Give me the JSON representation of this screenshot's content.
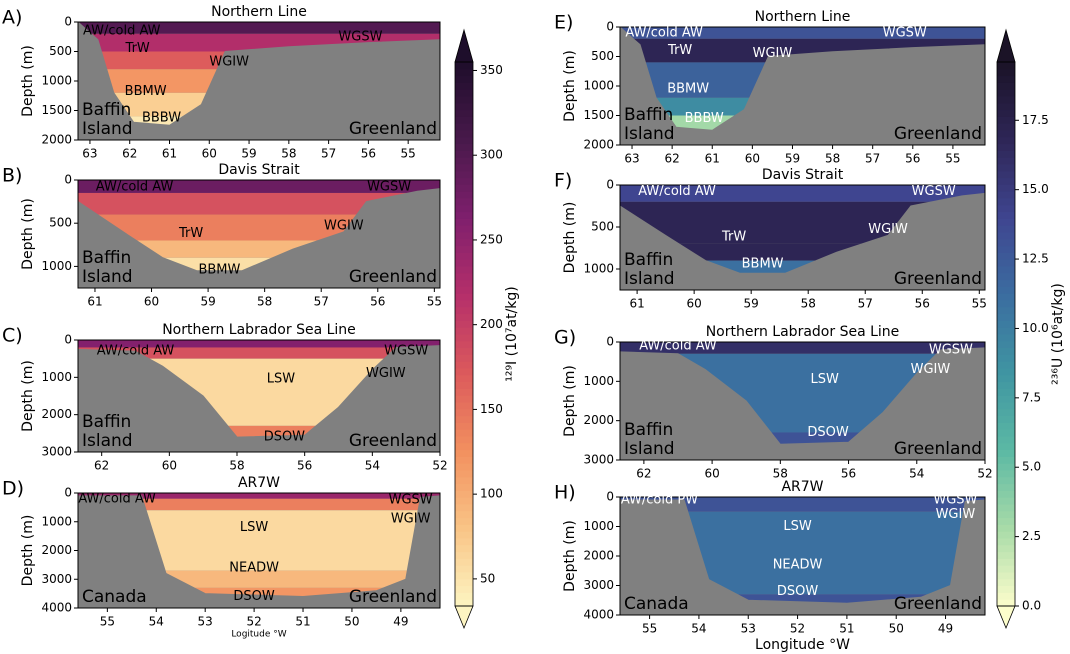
{
  "chart_data": [
    {
      "type": "section",
      "label": "A)",
      "title": "Northern Line",
      "colorbar": 0,
      "label_color": "#000000",
      "ylabel": "Depth (m)",
      "xlim": [
        63.3,
        54.2
      ],
      "xticks": [
        63,
        62,
        61,
        60,
        59,
        58,
        57,
        56,
        55
      ],
      "ylim": [
        0,
        2000
      ],
      "yticks": [
        0,
        500,
        1000,
        1500,
        2000
      ],
      "bathymetry": {
        "x": [
          63.3,
          62.8,
          62.4,
          61.9,
          61,
          60.2,
          59.6,
          58,
          56,
          54.2
        ],
        "depth": [
          0,
          300,
          1200,
          1700,
          1750,
          1400,
          500,
          420,
          350,
          300
        ]
      },
      "profile": {
        "depth": [
          0,
          200,
          500,
          800,
          1200,
          1600
        ],
        "values": [
          300,
          220,
          170,
          120,
          70,
          45
        ]
      },
      "masses": [
        {
          "name": "AW/cold AW",
          "x": 62.2,
          "depth": 150
        },
        {
          "name": "TrW",
          "x": 61.8,
          "depth": 450
        },
        {
          "name": "WGSW",
          "x": 56.2,
          "depth": 250
        },
        {
          "name": "WGIW",
          "x": 59.5,
          "depth": 680
        },
        {
          "name": "BBMW",
          "x": 61.6,
          "depth": 1180
        },
        {
          "name": "BBBW",
          "x": 61.2,
          "depth": 1630
        }
      ],
      "land_left": [
        "Baffin",
        "Island"
      ],
      "land_right": [
        "Greenland"
      ]
    },
    {
      "type": "section",
      "label": "B)",
      "title": "Davis Strait",
      "colorbar": 0,
      "label_color": "#000000",
      "ylabel": "Depth (m)",
      "xlim": [
        61.3,
        54.9
      ],
      "xticks": [
        61,
        60,
        59,
        58,
        57,
        56,
        55
      ],
      "ylim": [
        0,
        1250
      ],
      "yticks": [
        0,
        500,
        1000
      ],
      "bathymetry": {
        "x": [
          61.3,
          60.5,
          59.8,
          59.2,
          58.4,
          57.5,
          56.6,
          56.2,
          55.3,
          54.9
        ],
        "depth": [
          250,
          600,
          900,
          1050,
          1050,
          800,
          600,
          250,
          130,
          100
        ]
      },
      "profile": {
        "depth": [
          0,
          150,
          400,
          700,
          900
        ],
        "values": [
          280,
          180,
          140,
          90,
          55
        ]
      },
      "masses": [
        {
          "name": "AW/cold AW",
          "x": 60.3,
          "depth": 80
        },
        {
          "name": "WGSW",
          "x": 55.8,
          "depth": 80
        },
        {
          "name": "TrW",
          "x": 59.3,
          "depth": 620
        },
        {
          "name": "WGIW",
          "x": 56.6,
          "depth": 530
        },
        {
          "name": "BBMW",
          "x": 58.8,
          "depth": 1040
        }
      ],
      "land_left": [
        "Baffin",
        "Island"
      ],
      "land_right": [
        "Greenland"
      ]
    },
    {
      "type": "section",
      "label": "C)",
      "title": "Northern Labrador Sea Line",
      "colorbar": 0,
      "label_color": "#000000",
      "ylabel": "Depth (m)",
      "xlim": [
        62.7,
        52
      ],
      "xticks": [
        62,
        60,
        58,
        56,
        54,
        52
      ],
      "ylim": [
        0,
        3000
      ],
      "yticks": [
        0,
        1000,
        2000,
        3000
      ],
      "bathymetry": {
        "x": [
          62.7,
          61,
          60.2,
          59,
          58,
          56,
          55,
          54,
          53.3,
          52
        ],
        "depth": [
          250,
          300,
          700,
          1500,
          2600,
          2550,
          1800,
          800,
          200,
          150
        ]
      },
      "profile": {
        "depth": [
          0,
          200,
          500,
          2300
        ],
        "values": [
          260,
          180,
          60,
          140
        ]
      },
      "masses": [
        {
          "name": "AW/cold AW",
          "x": 61,
          "depth": 300
        },
        {
          "name": "WGSW",
          "x": 53,
          "depth": 300
        },
        {
          "name": "WGIW",
          "x": 53.6,
          "depth": 900
        },
        {
          "name": "LSW",
          "x": 56.7,
          "depth": 1050
        },
        {
          "name": "DSOW",
          "x": 56.6,
          "depth": 2600
        }
      ],
      "land_left": [
        "Baffin",
        "Island"
      ],
      "land_right": [
        "Greenland"
      ]
    },
    {
      "type": "section",
      "label": "D)",
      "title": "AR7W",
      "colorbar": 0,
      "label_color": "#000000",
      "ylabel": "Depth (m)",
      "xlabel": "Logitude °W",
      "xlim": [
        55.6,
        48.2
      ],
      "xticks": [
        55,
        54,
        53,
        52,
        51,
        50,
        49
      ],
      "ylim": [
        0,
        4000
      ],
      "yticks": [
        0,
        1000,
        2000,
        3000,
        4000
      ],
      "bathymetry": {
        "x": [
          55.6,
          54.3,
          53.8,
          53,
          51,
          49.5,
          48.9,
          48.6,
          48.2
        ],
        "depth": [
          100,
          100,
          2800,
          3500,
          3600,
          3400,
          3000,
          150,
          100
        ]
      },
      "profile": {
        "depth": [
          0,
          200,
          600,
          2700,
          3300
        ],
        "values": [
          240,
          140,
          60,
          90,
          120
        ]
      },
      "masses": [
        {
          "name": "AW/cold AW",
          "x": 54.8,
          "depth": 200
        },
        {
          "name": "WGSW",
          "x": 48.8,
          "depth": 250
        },
        {
          "name": "WGIW",
          "x": 48.8,
          "depth": 900
        },
        {
          "name": "LSW",
          "x": 52,
          "depth": 1200
        },
        {
          "name": "NEADW",
          "x": 52,
          "depth": 2600
        },
        {
          "name": "DSOW",
          "x": 52,
          "depth": 3600
        }
      ],
      "land_left": [
        "Canada"
      ],
      "land_right": [
        "Greenland"
      ]
    },
    {
      "type": "section",
      "label": "E)",
      "title": "Northern Line",
      "colorbar": 1,
      "label_color": "#ffffff",
      "ylabel": "Depth (m)",
      "xlim": [
        63.3,
        54.2
      ],
      "xticks": [
        63,
        62,
        61,
        60,
        59,
        58,
        57,
        56,
        55
      ],
      "ylim": [
        0,
        2000
      ],
      "yticks": [
        0,
        500,
        1000,
        1500,
        2000
      ],
      "bathymetry": {
        "x": [
          63.3,
          62.8,
          62.4,
          61.9,
          61,
          60.2,
          59.6,
          58,
          56,
          54.2
        ],
        "depth": [
          0,
          300,
          1200,
          1700,
          1750,
          1400,
          500,
          420,
          350,
          300
        ]
      },
      "profile": {
        "depth": [
          0,
          200,
          600,
          1200,
          1500
        ],
        "values": [
          13,
          17,
          12,
          9,
          3
        ]
      },
      "masses": [
        {
          "name": "AW/cold AW",
          "x": 62.2,
          "depth": 100
        },
        {
          "name": "TrW",
          "x": 61.8,
          "depth": 400
        },
        {
          "name": "WGSW",
          "x": 56.2,
          "depth": 100
        },
        {
          "name": "WGIW",
          "x": 59.5,
          "depth": 450
        },
        {
          "name": "BBMW",
          "x": 61.6,
          "depth": 1050
        },
        {
          "name": "BBBW",
          "x": 61.2,
          "depth": 1550
        }
      ],
      "land_left": [
        "Baffin",
        "Island"
      ],
      "land_right": [
        "Greenland"
      ]
    },
    {
      "type": "section",
      "label": "F)",
      "title": "Davis Strait",
      "colorbar": 1,
      "label_color": "#ffffff",
      "ylabel": "Depth (m)",
      "xlim": [
        61.3,
        54.9
      ],
      "xticks": [
        61,
        60,
        59,
        58,
        57,
        56,
        55
      ],
      "ylim": [
        0,
        1250
      ],
      "yticks": [
        0,
        500,
        1000
      ],
      "bathymetry": {
        "x": [
          61.3,
          60.5,
          59.8,
          59.2,
          58.4,
          57.5,
          56.6,
          56.2,
          55.3,
          54.9
        ],
        "depth": [
          250,
          600,
          900,
          1050,
          1050,
          800,
          600,
          250,
          130,
          100
        ]
      },
      "profile": {
        "depth": [
          0,
          200,
          700,
          900
        ],
        "values": [
          14,
          17,
          17,
          11
        ]
      },
      "masses": [
        {
          "name": "AW/cold AW",
          "x": 60.3,
          "depth": 80
        },
        {
          "name": "WGSW",
          "x": 55.8,
          "depth": 80
        },
        {
          "name": "TrW",
          "x": 59.3,
          "depth": 620
        },
        {
          "name": "WGIW",
          "x": 56.6,
          "depth": 530
        },
        {
          "name": "BBMW",
          "x": 58.8,
          "depth": 940
        }
      ],
      "land_left": [
        "Baffin",
        "Island"
      ],
      "land_right": [
        "Greenland"
      ]
    },
    {
      "type": "section",
      "label": "G)",
      "title": "Northern Labrador Sea Line",
      "colorbar": 1,
      "label_color": "#ffffff",
      "ylabel": "Depth (m)",
      "xlim": [
        62.7,
        52
      ],
      "xticks": [
        62,
        60,
        58,
        56,
        54,
        52
      ],
      "ylim": [
        0,
        3000
      ],
      "yticks": [
        0,
        1000,
        2000,
        3000
      ],
      "bathymetry": {
        "x": [
          62.7,
          61,
          60.2,
          59,
          58,
          56,
          55,
          54,
          53.3,
          52
        ],
        "depth": [
          250,
          300,
          700,
          1500,
          2600,
          2550,
          1800,
          800,
          200,
          150
        ]
      },
      "profile": {
        "depth": [
          0,
          300,
          2300
        ],
        "values": [
          16,
          11,
          13
        ]
      },
      "masses": [
        {
          "name": "AW/cold AW",
          "x": 61,
          "depth": 100
        },
        {
          "name": "WGSW",
          "x": 53,
          "depth": 200
        },
        {
          "name": "WGIW",
          "x": 53.6,
          "depth": 700
        },
        {
          "name": "LSW",
          "x": 56.7,
          "depth": 950
        },
        {
          "name": "DSOW",
          "x": 56.6,
          "depth": 2300
        }
      ],
      "land_left": [
        "Baffin",
        "Island"
      ],
      "land_right": [
        "Greenland"
      ]
    },
    {
      "type": "section",
      "label": "H)",
      "title": "AR7W",
      "colorbar": 1,
      "label_color": "#ffffff",
      "ylabel": "Depth (m)",
      "xlabel": "Longitude °W",
      "xlim": [
        55.6,
        48.2
      ],
      "xticks": [
        55,
        54,
        53,
        52,
        51,
        50,
        49
      ],
      "ylim": [
        0,
        4000
      ],
      "yticks": [
        0,
        1000,
        2000,
        3000,
        4000
      ],
      "bathymetry": {
        "x": [
          55.6,
          54.3,
          53.8,
          53,
          51,
          49.5,
          48.9,
          48.6,
          48.2
        ],
        "depth": [
          100,
          100,
          2800,
          3500,
          3600,
          3400,
          3000,
          150,
          100
        ]
      },
      "profile": {
        "depth": [
          0,
          500,
          3300
        ],
        "values": [
          13,
          11,
          13
        ]
      },
      "masses": [
        {
          "name": "AW/cold PW",
          "x": 54.8,
          "depth": 100
        },
        {
          "name": "WGSW",
          "x": 48.8,
          "depth": 100
        },
        {
          "name": "WGIW",
          "x": 48.8,
          "depth": 600
        },
        {
          "name": "LSW",
          "x": 52,
          "depth": 1000
        },
        {
          "name": "NEADW",
          "x": 52,
          "depth": 2300
        },
        {
          "name": "DSOW",
          "x": 52,
          "depth": 3200
        }
      ],
      "land_left": [
        "Canada"
      ],
      "land_right": [
        "Greenland"
      ]
    }
  ],
  "colorbars": [
    {
      "label": "¹²⁹I (10⁷at/kg)",
      "lim": [
        34,
        355
      ],
      "ticks": [
        50,
        100,
        150,
        200,
        250,
        300,
        350
      ],
      "colors": [
        "#fdf5c2",
        "#f9c486",
        "#f2905f",
        "#dc5a5c",
        "#b52f6a",
        "#7f1f6d",
        "#48194b",
        "#1e0e2b"
      ]
    },
    {
      "label": "²³⁶U (10⁶at/kg)",
      "lim": [
        0,
        19.6
      ],
      "ticks": [
        {
          "value": 0,
          "label": "0.0"
        },
        2.5,
        {
          "value": 5,
          "label": "5.0"
        },
        7.5,
        {
          "value": 10,
          "label": "10.0"
        },
        12.5,
        {
          "value": 15,
          "label": "15.0"
        },
        17.5
      ],
      "colors": [
        "#fdfecc",
        "#a8dba8",
        "#5cb9a4",
        "#3f95a2",
        "#3b6da0",
        "#3f4590",
        "#2e2657",
        "#1b1327"
      ]
    }
  ]
}
